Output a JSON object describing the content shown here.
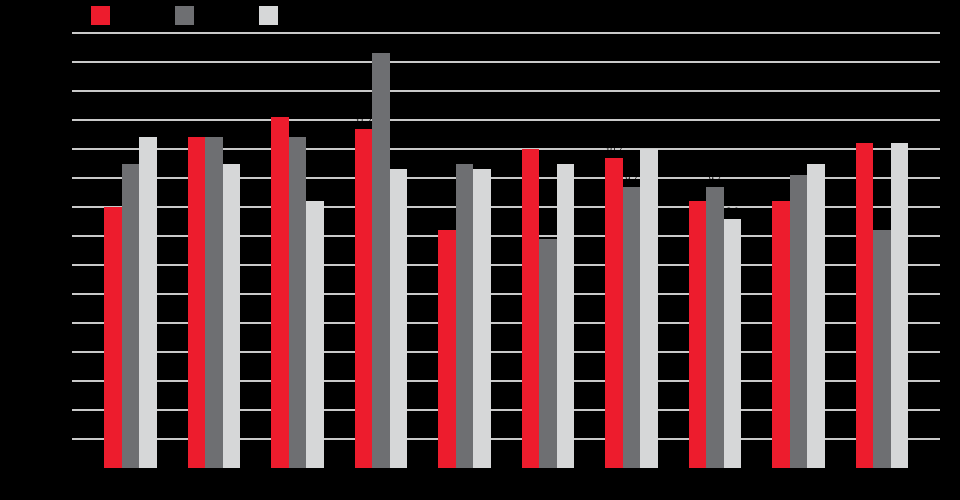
{
  "page": {
    "background": "#000000",
    "text_color": "#000000",
    "note_text_visibility": "all text is rendered black on black"
  },
  "legend": {
    "position": "top-left",
    "items": [
      {
        "label": "",
        "color": "#ed1c2d"
      },
      {
        "label": "",
        "color": "#6e6f72"
      },
      {
        "label": "",
        "color": "#d6d7d8"
      }
    ]
  },
  "chart_data": {
    "type": "bar",
    "title": "",
    "xlabel": "",
    "ylabel": "",
    "categories": [
      "",
      "",
      "",
      "",
      "",
      "",
      "",
      "",
      "",
      ""
    ],
    "series": [
      {
        "name": "",
        "color": "#ed1c2d",
        "values": [
          9.0,
          11.4,
          12.1,
          11.7,
          8.2,
          11.0,
          10.7,
          9.2,
          9.2,
          11.2
        ]
      },
      {
        "name": "",
        "color": "#6e6f72",
        "values": [
          10.5,
          11.4,
          11.4,
          14.3,
          10.5,
          7.9,
          9.7,
          9.7,
          10.1,
          8.2
        ]
      },
      {
        "name": "",
        "color": "#d6d7d8",
        "values": [
          11.4,
          10.5,
          9.2,
          10.3,
          10.3,
          10.5,
          11.0,
          8.6,
          10.5,
          11.2
        ]
      }
    ],
    "data_labels_shown": true,
    "data_label_color": "#000000",
    "ylim": [
      0,
      15
    ],
    "ytick_step": 1,
    "grid": true,
    "gridline_color": "#c9c9c9",
    "legend_position": "top-left",
    "background": "#000000"
  }
}
